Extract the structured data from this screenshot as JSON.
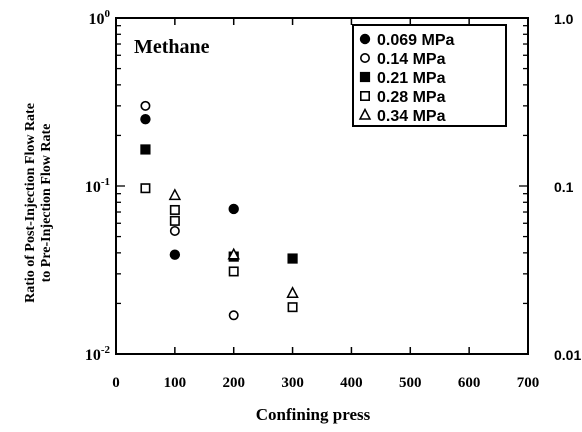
{
  "chart_data": {
    "type": "scatter",
    "title": "Methane",
    "xlabel": "Confining press",
    "ylabel_line1": "Ratio of Post-Injection Flow Rate",
    "ylabel_line2": "to Pre-Injection Flow Rate",
    "xlim": [
      0,
      700
    ],
    "ylim": [
      0.01,
      1
    ],
    "yscale": "log",
    "x_ticks": [
      0,
      100,
      200,
      300,
      400,
      500,
      600,
      700
    ],
    "y_tick_labels": [
      {
        "value": 1,
        "base": "10",
        "exp": "0"
      },
      {
        "value": 0.1,
        "base": "10",
        "exp": "-1"
      },
      {
        "value": 0.01,
        "base": "10",
        "exp": "-2"
      }
    ],
    "right_tick_labels": [
      {
        "value": 1,
        "text": "1.0"
      },
      {
        "value": 0.1,
        "text": "0.1"
      },
      {
        "value": 0.01,
        "text": "0.01"
      }
    ],
    "legend_position": "top-right",
    "series": [
      {
        "name": "0.069 MPa",
        "marker": "filled-circle",
        "points": [
          [
            50,
            0.25
          ],
          [
            100,
            0.039
          ],
          [
            200,
            0.073
          ]
        ]
      },
      {
        "name": "0.14 MPa",
        "marker": "open-circle",
        "points": [
          [
            50,
            0.3
          ],
          [
            100,
            0.054
          ],
          [
            200,
            0.017
          ]
        ]
      },
      {
        "name": "0.21 MPa",
        "marker": "filled-square",
        "points": [
          [
            50,
            0.165
          ],
          [
            200,
            0.038
          ],
          [
            300,
            0.037
          ]
        ]
      },
      {
        "name": "0.28 MPa",
        "marker": "open-square",
        "points": [
          [
            50,
            0.097
          ],
          [
            100,
            0.072
          ],
          [
            100,
            0.062
          ],
          [
            200,
            0.031
          ],
          [
            300,
            0.019
          ]
        ]
      },
      {
        "name": "0.34 MPa",
        "marker": "open-triangle",
        "points": [
          [
            100,
            0.088
          ],
          [
            200,
            0.039
          ],
          [
            300,
            0.023
          ]
        ]
      }
    ]
  }
}
